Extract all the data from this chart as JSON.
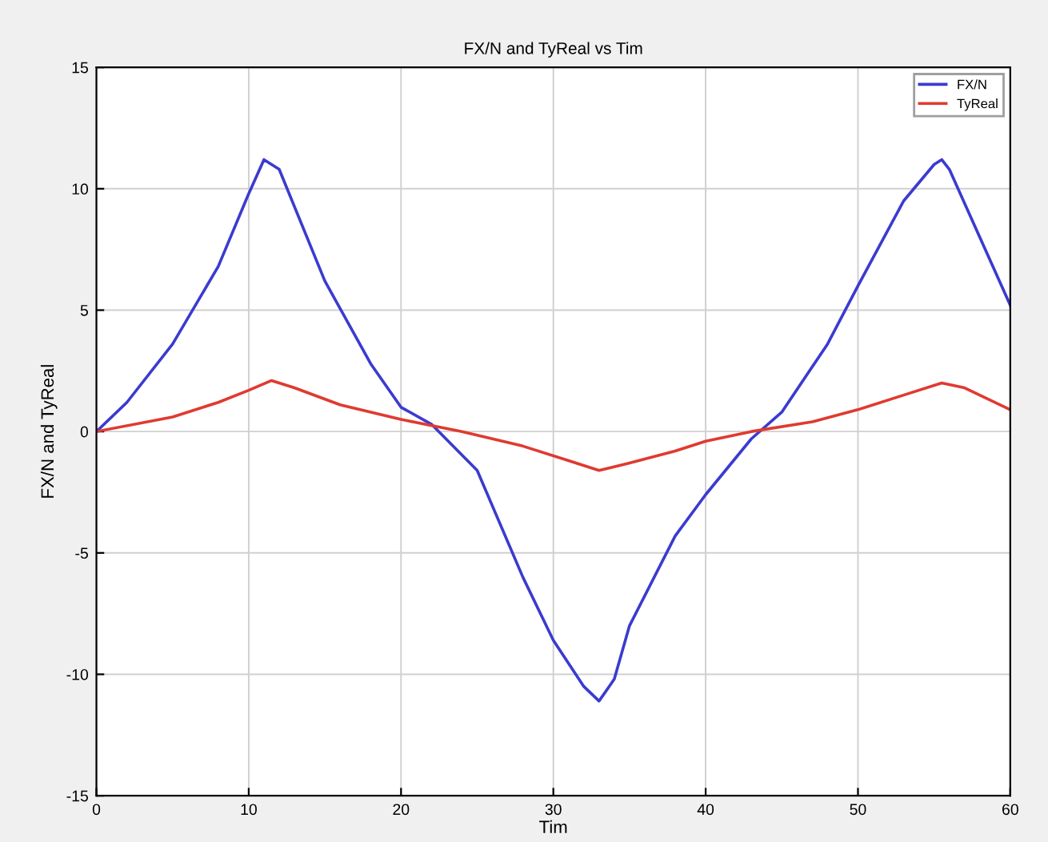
{
  "chart_data": {
    "type": "line",
    "title": "FX/N and TyReal vs Tim",
    "xlabel": "Tim",
    "ylabel": "FX/N and TyReal",
    "xlim": [
      0,
      60
    ],
    "ylim": [
      -15,
      15
    ],
    "xticks": [
      0,
      10,
      20,
      30,
      40,
      50,
      60
    ],
    "yticks": [
      -15,
      -10,
      -5,
      0,
      5,
      10,
      15
    ],
    "grid": true,
    "legend": "top right",
    "line_style": "solid",
    "marker": "none",
    "series": [
      {
        "name": "FX/N",
        "color": "#3b3bd0",
        "x": [
          0,
          2,
          5,
          8,
          10,
          11,
          12,
          15,
          18,
          20,
          22,
          25,
          28,
          30,
          32,
          33,
          34,
          35,
          38,
          40,
          43,
          45,
          48,
          50,
          53,
          55,
          55.5,
          56,
          58,
          60
        ],
        "values": [
          0,
          1.2,
          3.6,
          6.8,
          9.8,
          11.2,
          10.8,
          6.2,
          2.8,
          1.0,
          0.3,
          -1.6,
          -6.0,
          -8.6,
          -10.5,
          -11.1,
          -10.2,
          -8.0,
          -4.3,
          -2.6,
          -0.3,
          0.8,
          3.6,
          6.0,
          9.5,
          11.0,
          11.2,
          10.8,
          8.0,
          5.2
        ]
      },
      {
        "name": "TyReal",
        "color": "#e03a30",
        "x": [
          0,
          5,
          8,
          10,
          11.5,
          13,
          16,
          20,
          24,
          28,
          31,
          33,
          35,
          38,
          40,
          43,
          47,
          50,
          53,
          55.5,
          57,
          60
        ],
        "values": [
          0,
          0.6,
          1.2,
          1.7,
          2.1,
          1.8,
          1.1,
          0.5,
          0,
          -0.6,
          -1.2,
          -1.6,
          -1.3,
          -0.8,
          -0.4,
          0,
          0.4,
          0.9,
          1.5,
          2.0,
          1.8,
          0.9
        ]
      }
    ]
  }
}
